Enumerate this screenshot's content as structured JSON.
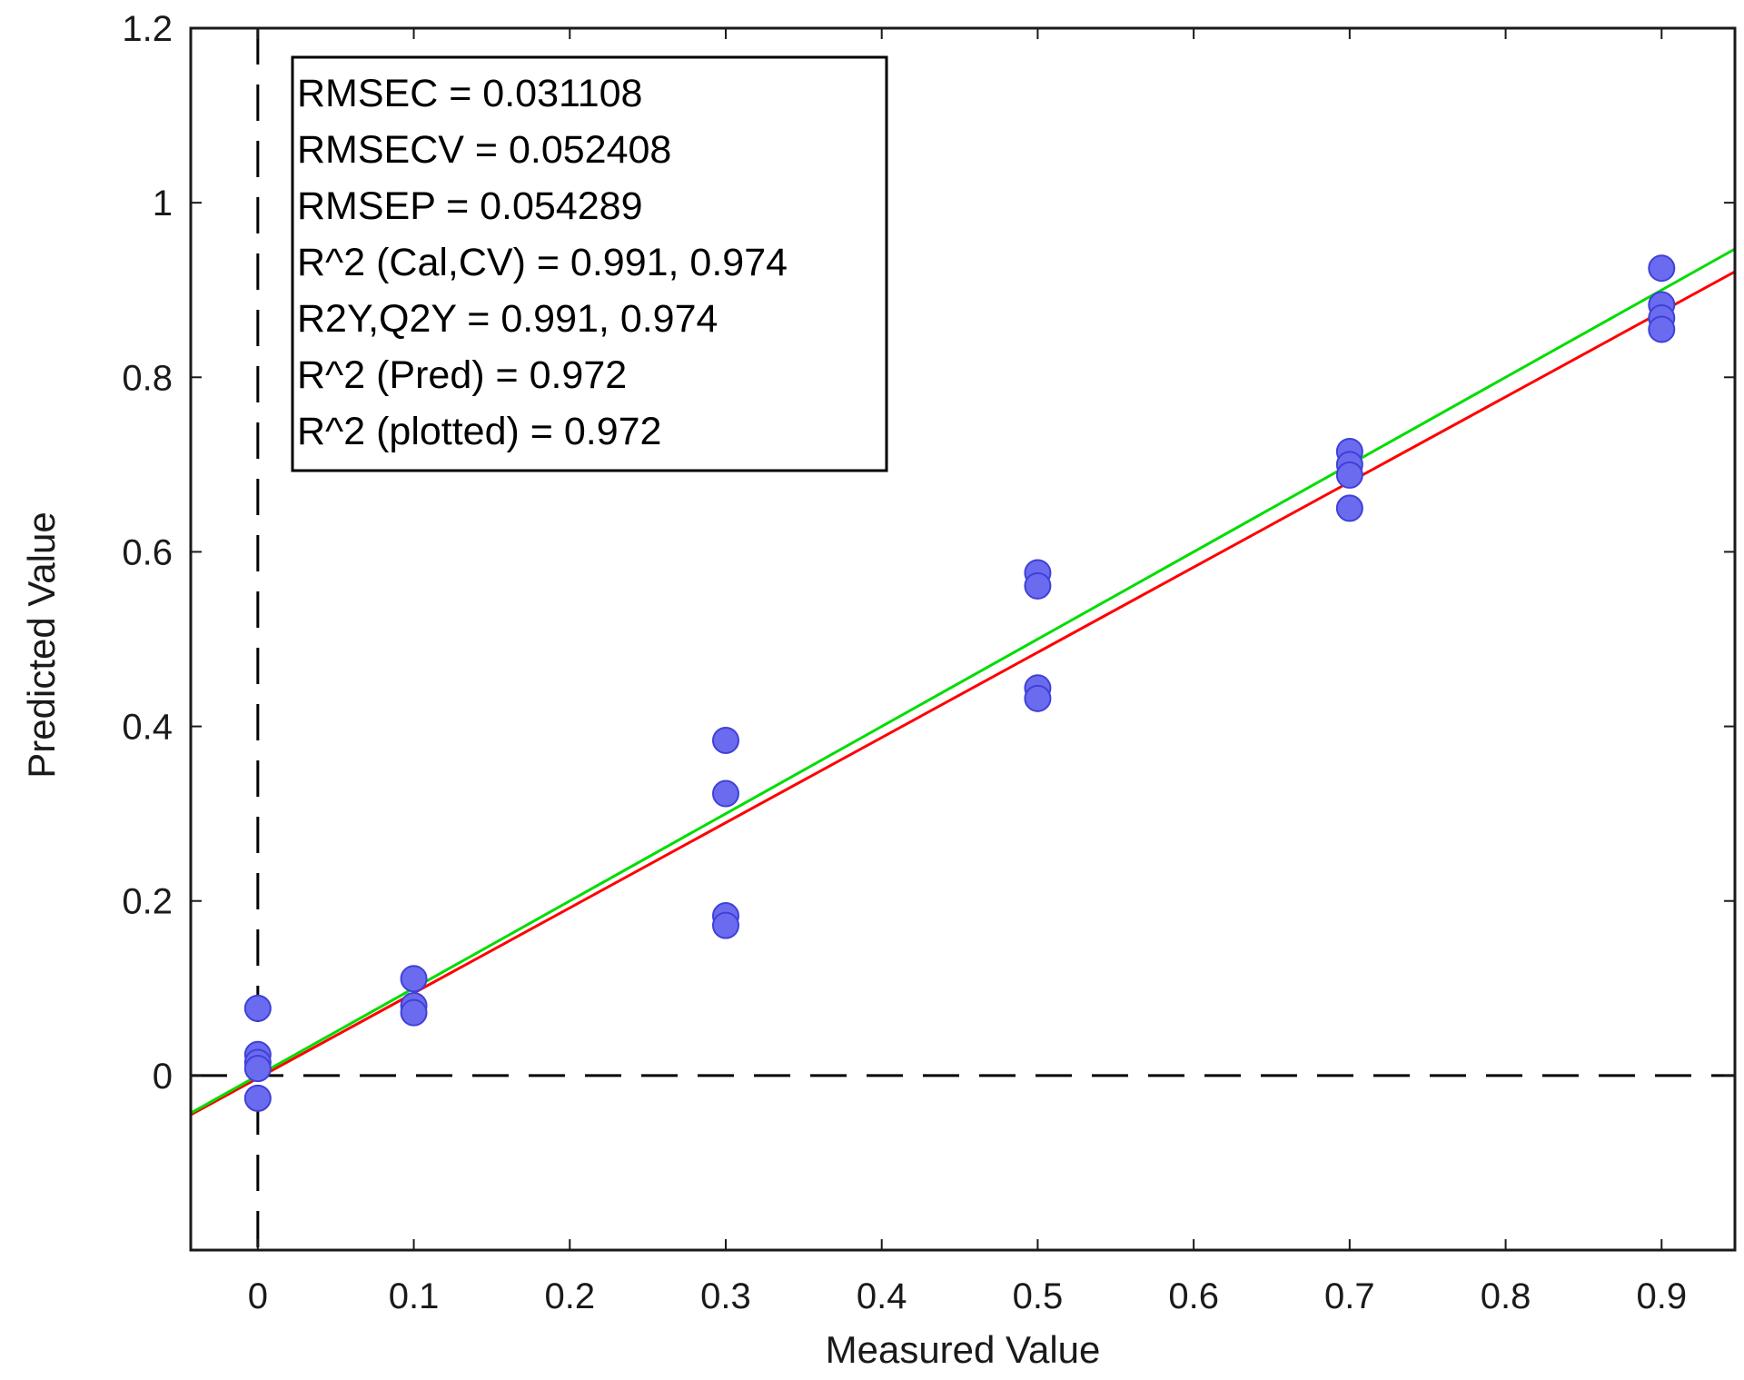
{
  "chart_data": {
    "type": "scatter",
    "title": "",
    "xlabel": "Measured Value",
    "ylabel": "Predicted Value",
    "xlim": [
      -0.043,
      0.947
    ],
    "ylim": [
      -0.2,
      1.2
    ],
    "x_ticks": [
      0,
      0.1,
      0.2,
      0.3,
      0.4,
      0.5,
      0.6,
      0.7,
      0.8,
      0.9
    ],
    "x_tick_labels": [
      "0",
      "0.1",
      "0.2",
      "0.3",
      "0.4",
      "0.5",
      "0.6",
      "0.7",
      "0.8",
      "0.9"
    ],
    "y_ticks": [
      0,
      0.2,
      0.4,
      0.6,
      0.8,
      1.0,
      1.2
    ],
    "y_tick_labels": [
      "0",
      "0.2",
      "0.4",
      "0.6",
      "0.8",
      "1",
      "1.2"
    ],
    "grid": false,
    "reference_lines": {
      "x": 0,
      "y": 0,
      "style": "dashed"
    },
    "series": [
      {
        "name": "samples",
        "color": "#6b6bef",
        "points": [
          [
            0,
            0.077
          ],
          [
            0,
            0.024
          ],
          [
            0,
            0.015
          ],
          [
            0,
            0.008
          ],
          [
            0,
            -0.026
          ],
          [
            0.1,
            0.111
          ],
          [
            0.1,
            0.08
          ],
          [
            0.1,
            0.072
          ],
          [
            0.3,
            0.384
          ],
          [
            0.3,
            0.323
          ],
          [
            0.3,
            0.183
          ],
          [
            0.3,
            0.172
          ],
          [
            0.5,
            0.576
          ],
          [
            0.5,
            0.561
          ],
          [
            0.5,
            0.444
          ],
          [
            0.5,
            0.432
          ],
          [
            0.7,
            0.715
          ],
          [
            0.7,
            0.7
          ],
          [
            0.7,
            0.688
          ],
          [
            0.7,
            0.65
          ],
          [
            0.9,
            0.925
          ],
          [
            0.9,
            0.883
          ],
          [
            0.9,
            0.868
          ],
          [
            0.9,
            0.855
          ]
        ]
      }
    ],
    "fit_lines": [
      {
        "name": "fit-red",
        "color": "#ff0000",
        "x": [
          -0.043,
          0.947
        ],
        "y": [
          -0.045,
          0.921
        ]
      },
      {
        "name": "fit-green",
        "color": "#00dd00",
        "x": [
          -0.043,
          0.947
        ],
        "y": [
          -0.043,
          0.947
        ]
      }
    ],
    "annotations": [
      "RMSEC = 0.031108",
      "RMSECV = 0.052408",
      "RMSEP = 0.054289",
      "R^2 (Cal,CV) = 0.991,  0.974",
      "R2Y,Q2Y = 0.991, 0.974",
      "R^2 (Pred) = 0.972",
      "R^2 (plotted) = 0.972"
    ]
  }
}
